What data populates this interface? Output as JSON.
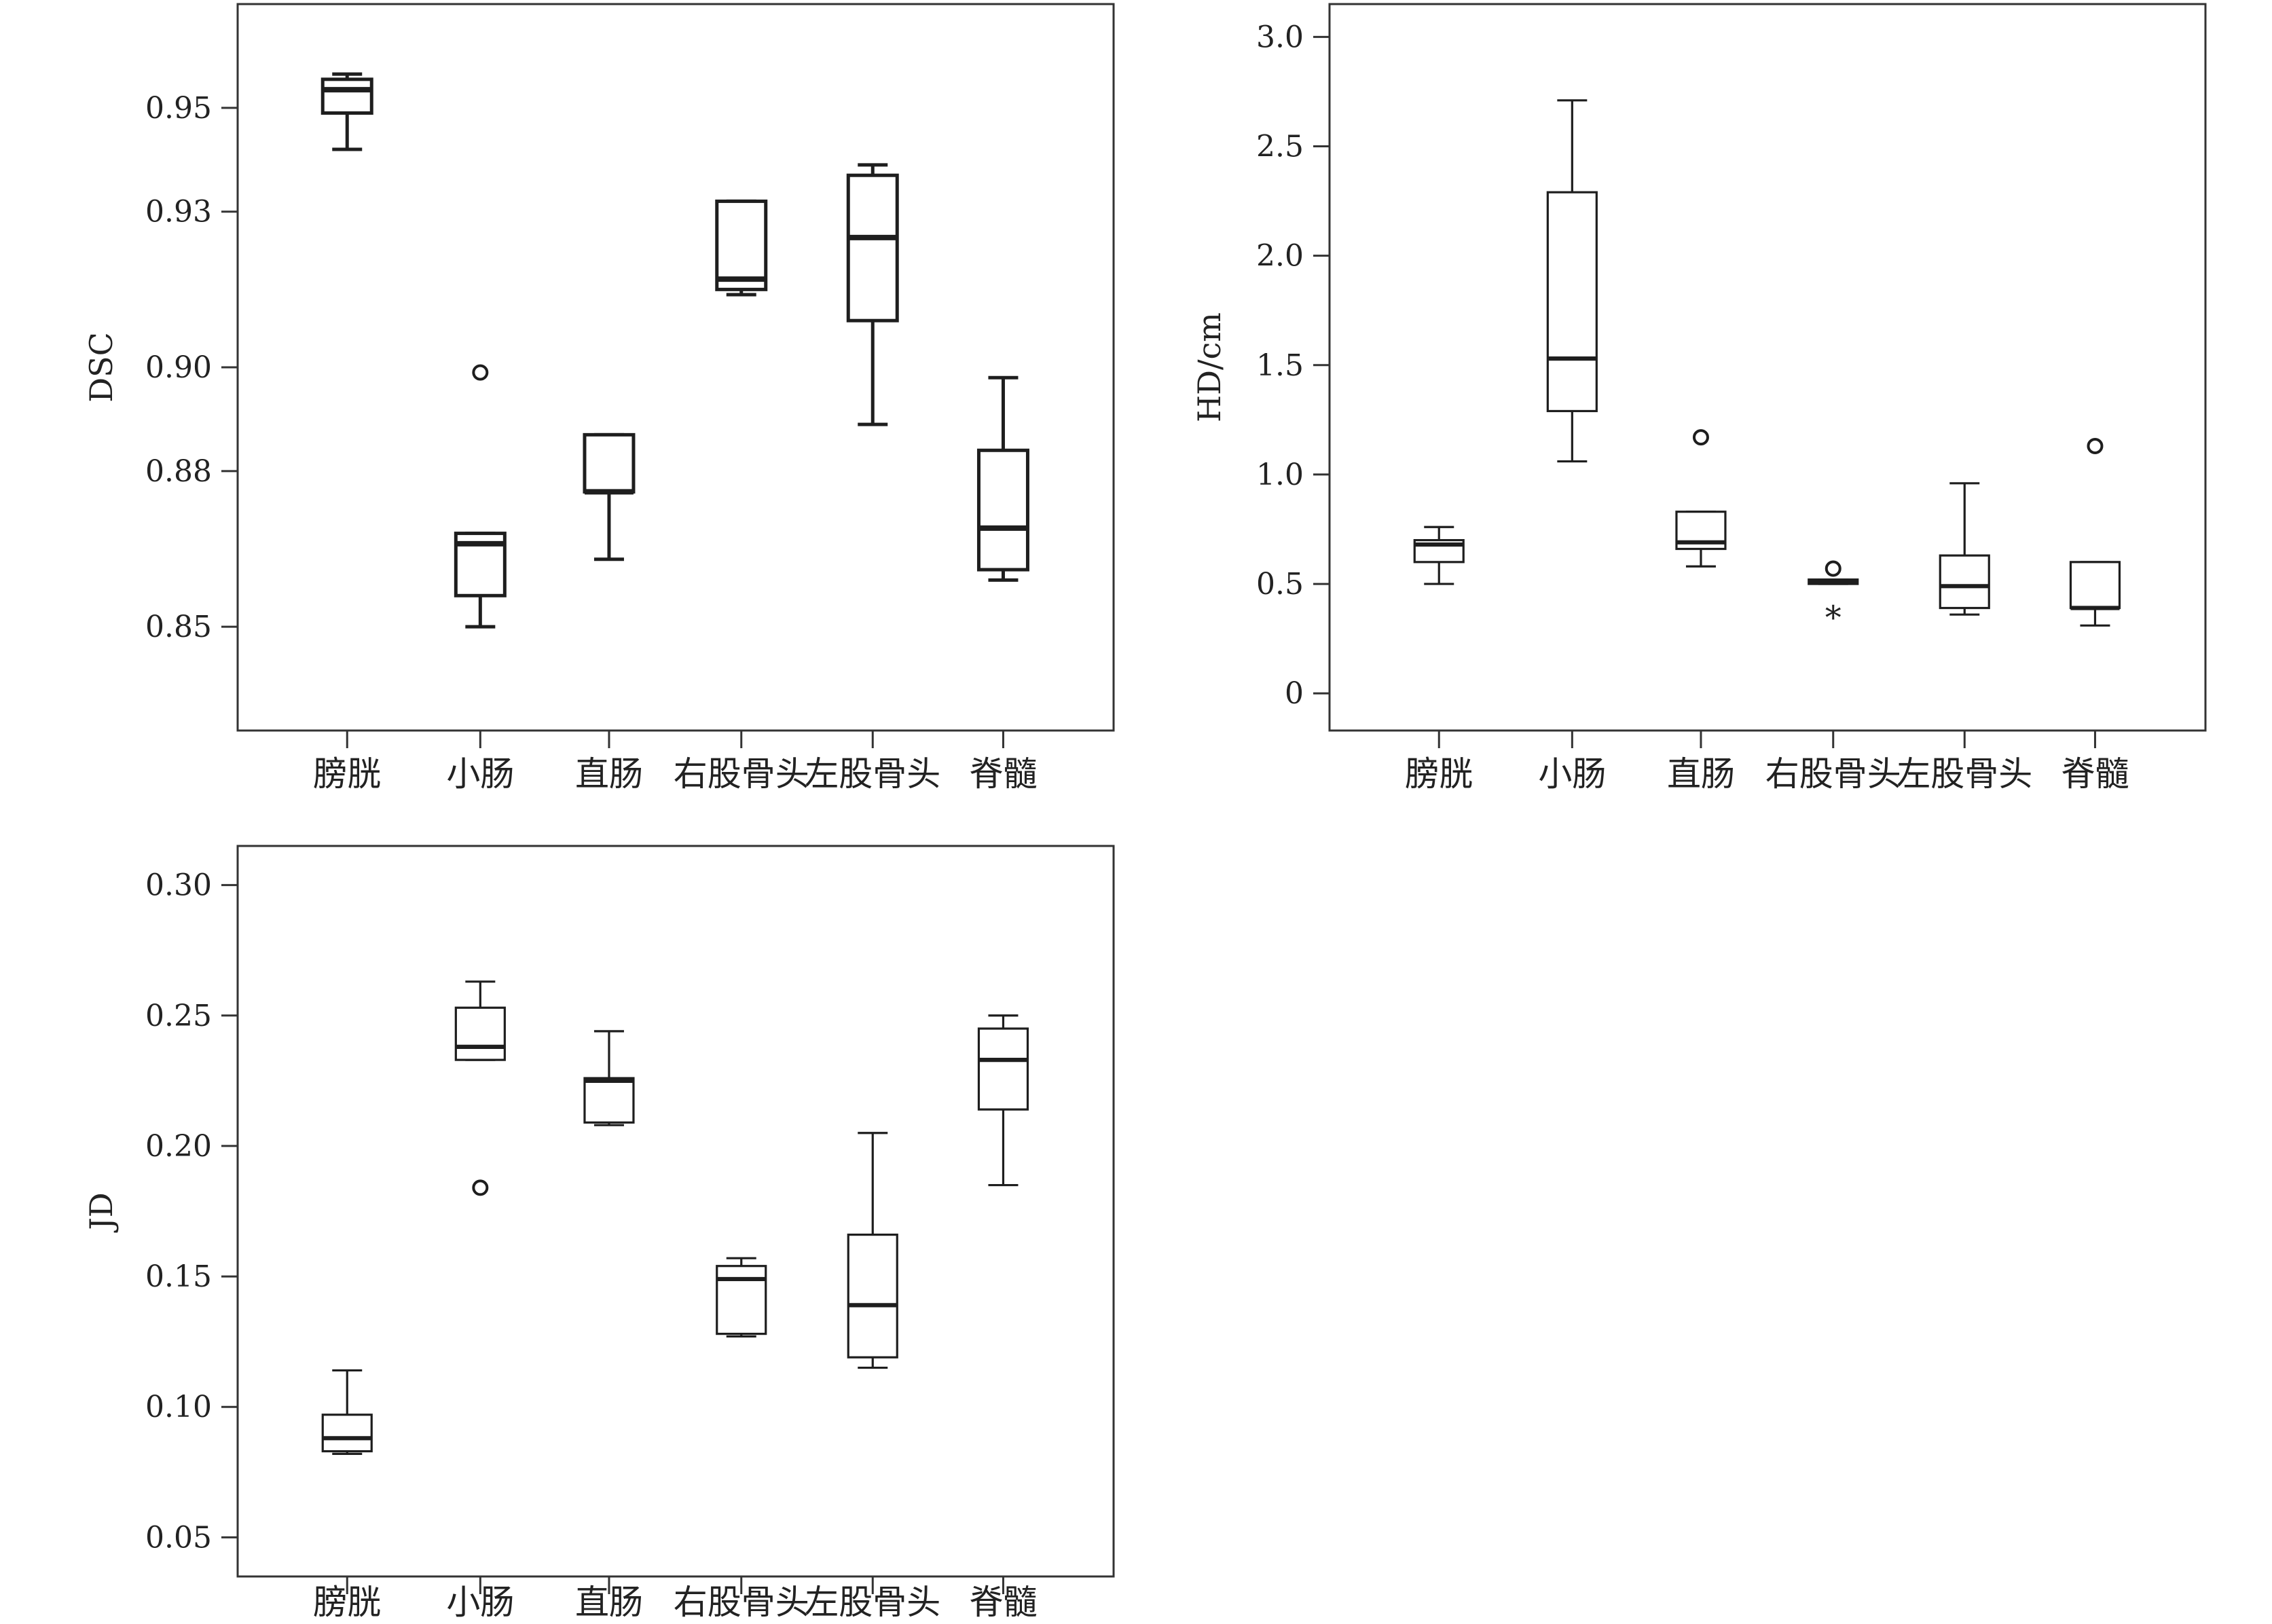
{
  "chart_data": [
    {
      "type": "box",
      "ylabel": "DSC",
      "categories": [
        "膀胱",
        "小肠",
        "直肠",
        "右股骨头",
        "左股骨头",
        "脊髓"
      ],
      "ylim": [
        0.83,
        0.97
      ],
      "yticks": [
        0.85,
        0.88,
        0.9,
        0.93,
        0.95
      ],
      "ytick_labels": [
        "0.85",
        "0.88",
        "0.90",
        "0.93",
        "0.95"
      ],
      "boxes": [
        {
          "whisker_low": 0.942,
          "q1": 0.949,
          "median": 0.9535,
          "q3": 0.9555,
          "whisker_high": 0.9565,
          "outliers": []
        },
        {
          "whisker_low": 0.85,
          "q1": 0.856,
          "median": 0.866,
          "q3": 0.868,
          "whisker_high": 0.868,
          "outliers": [
            0.899
          ]
        },
        {
          "whisker_low": 0.863,
          "q1": 0.876,
          "median": 0.876,
          "q3": 0.887,
          "whisker_high": 0.887,
          "outliers": []
        },
        {
          "whisker_low": 0.914,
          "q1": 0.915,
          "median": 0.917,
          "q3": 0.932,
          "whisker_high": 0.932,
          "outliers": []
        },
        {
          "whisker_low": 0.889,
          "q1": 0.909,
          "median": 0.925,
          "q3": 0.937,
          "whisker_high": 0.939,
          "outliers": []
        },
        {
          "whisker_low": 0.859,
          "q1": 0.861,
          "median": 0.869,
          "q3": 0.884,
          "whisker_high": 0.898,
          "outliers": []
        }
      ]
    },
    {
      "type": "box",
      "ylabel": "HD/cm",
      "categories": [
        "膀胱",
        "小肠",
        "直肠",
        "右股骨头",
        "左股骨头",
        "脊髓"
      ],
      "ylim": [
        -0.17,
        3.15
      ],
      "yticks": [
        0,
        0.5,
        1.0,
        1.5,
        2.0,
        2.5,
        3.0
      ],
      "ytick_labels": [
        "0",
        "0.5",
        "1.0",
        "1.5",
        "2.0",
        "2.5",
        "3.0"
      ],
      "boxes": [
        {
          "whisker_low": 0.5,
          "q1": 0.6,
          "median": 0.68,
          "q3": 0.7,
          "whisker_high": 0.76,
          "outliers": []
        },
        {
          "whisker_low": 1.06,
          "q1": 1.29,
          "median": 1.53,
          "q3": 2.29,
          "whisker_high": 2.71,
          "outliers": []
        },
        {
          "whisker_low": 0.58,
          "q1": 0.66,
          "median": 0.69,
          "q3": 0.83,
          "whisker_high": 0.83,
          "outliers": [
            1.17
          ]
        },
        {
          "whisker_low": 0.5,
          "q1": 0.5,
          "median": 0.51,
          "q3": 0.52,
          "whisker_high": 0.52,
          "outliers": [
            0.57
          ],
          "extremes": [
            0.37
          ]
        },
        {
          "whisker_low": 0.36,
          "q1": 0.39,
          "median": 0.49,
          "q3": 0.63,
          "whisker_high": 0.96,
          "outliers": []
        },
        {
          "whisker_low": 0.31,
          "q1": 0.39,
          "median": 0.39,
          "q3": 0.6,
          "whisker_high": 0.6,
          "outliers": [
            1.13
          ]
        }
      ]
    },
    {
      "type": "box",
      "ylabel": "JD",
      "categories": [
        "膀胱",
        "小肠",
        "直肠",
        "右股骨头",
        "左股骨头",
        "脊髓"
      ],
      "ylim": [
        0.035,
        0.315
      ],
      "yticks": [
        0.05,
        0.1,
        0.15,
        0.2,
        0.25,
        0.3
      ],
      "ytick_labels": [
        "0.05",
        "0.10",
        "0.15",
        "0.20",
        "0.25",
        "0.30"
      ],
      "boxes": [
        {
          "whisker_low": 0.082,
          "q1": 0.083,
          "median": 0.088,
          "q3": 0.097,
          "whisker_high": 0.114,
          "outliers": []
        },
        {
          "whisker_low": 0.233,
          "q1": 0.233,
          "median": 0.238,
          "q3": 0.253,
          "whisker_high": 0.263,
          "outliers": [
            0.184
          ]
        },
        {
          "whisker_low": 0.208,
          "q1": 0.209,
          "median": 0.225,
          "q3": 0.226,
          "whisker_high": 0.244,
          "outliers": []
        },
        {
          "whisker_low": 0.127,
          "q1": 0.128,
          "median": 0.149,
          "q3": 0.154,
          "whisker_high": 0.157,
          "outliers": []
        },
        {
          "whisker_low": 0.115,
          "q1": 0.119,
          "median": 0.139,
          "q3": 0.166,
          "whisker_high": 0.205,
          "outliers": []
        },
        {
          "whisker_low": 0.185,
          "q1": 0.214,
          "median": 0.233,
          "q3": 0.245,
          "whisker_high": 0.25,
          "outliers": []
        }
      ]
    }
  ]
}
